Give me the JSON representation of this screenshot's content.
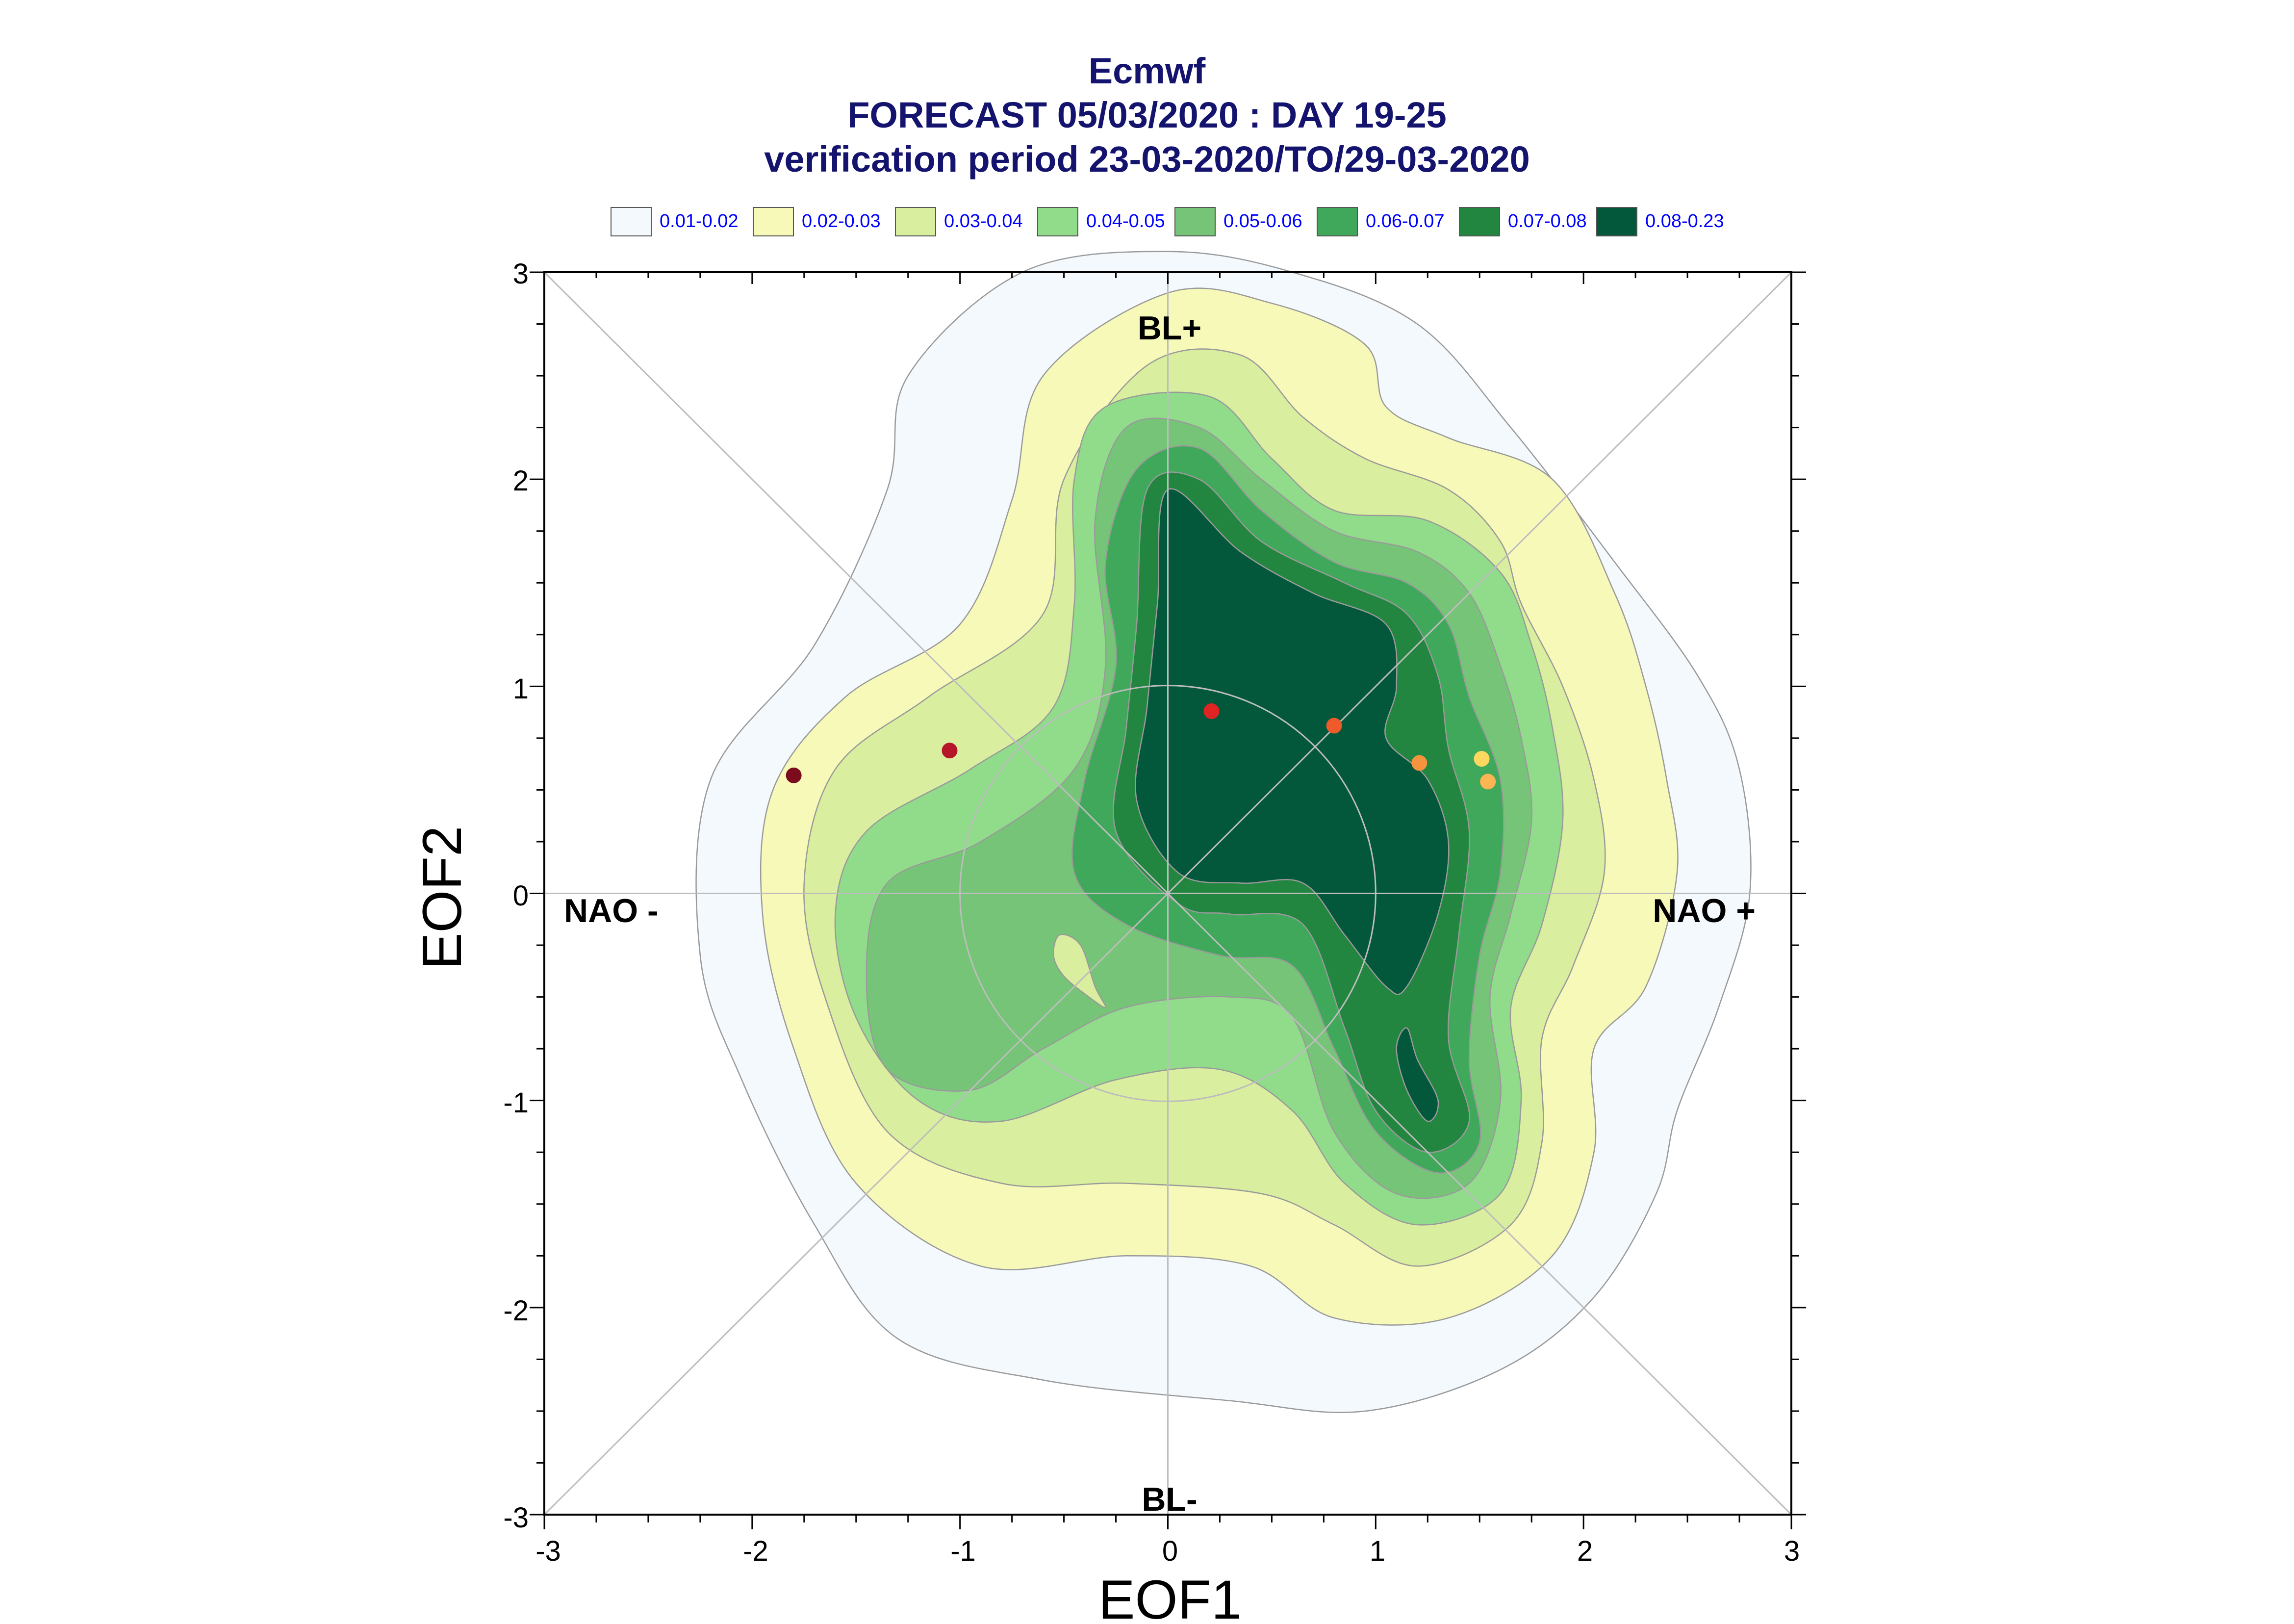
{
  "chart_data": {
    "type": "contour-density-scatter",
    "title_lines": [
      "Ecmwf",
      "FORECAST 05/03/2020 : DAY 19-25",
      "verification period 23-03-2020/TO/29-03-2020"
    ],
    "xlabel": "EOF1",
    "ylabel": "EOF2",
    "xlim": [
      -3,
      3
    ],
    "ylim": [
      -3,
      3
    ],
    "x_ticks": [
      "-3",
      "-2",
      "-1",
      "0",
      "1",
      "2",
      "3"
    ],
    "y_ticks": [
      "3",
      "2",
      "1",
      "0",
      "-1",
      "-2",
      "-3"
    ],
    "grid": true,
    "reference_circle_radius": 1,
    "region_labels": {
      "bl_plus": "BL+",
      "bl_minus": "BL-",
      "nao_minus": "NAO -",
      "nao_plus": "NAO +"
    },
    "legend": [
      {
        "label": "0.01-0.02",
        "color": "#f4f9fd"
      },
      {
        "label": "0.02-0.03",
        "color": "#f7f9b9"
      },
      {
        "label": "0.03-0.04",
        "color": "#d9ee9e"
      },
      {
        "label": "0.04-0.05",
        "color": "#90dc8b"
      },
      {
        "label": "0.05-0.06",
        "color": "#76c477"
      },
      {
        "label": "0.06-0.07",
        "color": "#40a85a"
      },
      {
        "label": "0.07-0.08",
        "color": "#238640"
      },
      {
        "label": "0.08-0.23",
        "color": "#03573a"
      }
    ],
    "points": [
      {
        "x": -1.8,
        "y": 0.57,
        "color": "#7a0c1e"
      },
      {
        "x": -1.05,
        "y": 0.69,
        "color": "#b5162a"
      },
      {
        "x": 0.21,
        "y": 0.88,
        "color": "#e02424"
      },
      {
        "x": 0.8,
        "y": 0.81,
        "color": "#ee5a2a"
      },
      {
        "x": 1.21,
        "y": 0.63,
        "color": "#f6933e"
      },
      {
        "x": 1.51,
        "y": 0.65,
        "color": "#fcd860"
      },
      {
        "x": 1.54,
        "y": 0.54,
        "color": "#fbb553"
      }
    ],
    "contours": [
      {
        "level": "0.01-0.02",
        "color": "#f4f9fd",
        "loops": [
          [
            [
              -0.7,
              3.0
            ],
            [
              0.0,
              3.1
            ],
            [
              0.6,
              3.0
            ],
            [
              1.2,
              2.75
            ],
            [
              1.65,
              2.25
            ],
            [
              2.15,
              1.6
            ],
            [
              2.55,
              1.05
            ],
            [
              2.75,
              0.6
            ],
            [
              2.8,
              0.0
            ],
            [
              2.65,
              -0.55
            ],
            [
              2.45,
              -1.05
            ],
            [
              2.35,
              -1.45
            ],
            [
              2.05,
              -1.95
            ],
            [
              1.6,
              -2.3
            ],
            [
              0.95,
              -2.5
            ],
            [
              0.3,
              -2.45
            ],
            [
              -0.6,
              -2.35
            ],
            [
              -1.3,
              -2.15
            ],
            [
              -1.7,
              -1.6
            ],
            [
              -2.05,
              -0.9
            ],
            [
              -2.25,
              -0.3
            ],
            [
              -2.2,
              0.55
            ],
            [
              -1.7,
              1.2
            ],
            [
              -1.35,
              1.95
            ],
            [
              -1.25,
              2.5
            ]
          ]
        ]
      },
      {
        "level": "0.02-0.03",
        "color": "#f7f9b9",
        "loops": [
          [
            [
              0.0,
              2.9
            ],
            [
              0.5,
              2.85
            ],
            [
              0.95,
              2.65
            ],
            [
              1.05,
              2.35
            ],
            [
              1.35,
              2.2
            ],
            [
              1.85,
              2.0
            ],
            [
              2.15,
              1.45
            ],
            [
              2.3,
              1.0
            ],
            [
              2.4,
              0.55
            ],
            [
              2.45,
              0.1
            ],
            [
              2.3,
              -0.45
            ],
            [
              2.05,
              -0.75
            ],
            [
              2.05,
              -1.25
            ],
            [
              1.85,
              -1.75
            ],
            [
              1.35,
              -2.05
            ],
            [
              0.8,
              -2.05
            ],
            [
              0.4,
              -1.8
            ],
            [
              -0.2,
              -1.75
            ],
            [
              -0.9,
              -1.8
            ],
            [
              -1.5,
              -1.4
            ],
            [
              -1.8,
              -0.75
            ],
            [
              -1.95,
              -0.1
            ],
            [
              -1.9,
              0.5
            ],
            [
              -1.55,
              0.95
            ],
            [
              -1.0,
              1.3
            ],
            [
              -0.75,
              1.9
            ],
            [
              -0.6,
              2.5
            ]
          ]
        ]
      },
      {
        "level": "0.03-0.04",
        "color": "#d9ee9e",
        "loops": [
          [
            [
              -0.1,
              2.55
            ],
            [
              0.35,
              2.6
            ],
            [
              0.65,
              2.3
            ],
            [
              0.95,
              2.1
            ],
            [
              1.35,
              1.95
            ],
            [
              1.6,
              1.7
            ],
            [
              1.7,
              1.4
            ],
            [
              1.9,
              1.0
            ],
            [
              2.05,
              0.55
            ],
            [
              2.1,
              0.1
            ],
            [
              1.95,
              -0.35
            ],
            [
              1.8,
              -0.7
            ],
            [
              1.8,
              -1.2
            ],
            [
              1.65,
              -1.6
            ],
            [
              1.2,
              -1.8
            ],
            [
              0.8,
              -1.6
            ],
            [
              0.45,
              -1.45
            ],
            [
              -0.2,
              -1.4
            ],
            [
              -0.8,
              -1.4
            ],
            [
              -1.35,
              -1.15
            ],
            [
              -1.65,
              -0.5
            ],
            [
              -1.75,
              0.05
            ],
            [
              -1.6,
              0.6
            ],
            [
              -1.15,
              0.95
            ],
            [
              -0.6,
              1.35
            ],
            [
              -0.5,
              2.0
            ]
          ]
        ]
      },
      {
        "level": "0.04-0.05",
        "color": "#90dc8b",
        "loops": [
          [
            [
              -0.3,
              2.35
            ],
            [
              0.2,
              2.4
            ],
            [
              0.5,
              2.1
            ],
            [
              0.8,
              1.85
            ],
            [
              1.25,
              1.8
            ],
            [
              1.6,
              1.55
            ],
            [
              1.75,
              1.2
            ],
            [
              1.85,
              0.8
            ],
            [
              1.9,
              0.35
            ],
            [
              1.8,
              -0.15
            ],
            [
              1.65,
              -0.55
            ],
            [
              1.7,
              -1.0
            ],
            [
              1.6,
              -1.45
            ],
            [
              1.2,
              -1.6
            ],
            [
              0.85,
              -1.4
            ],
            [
              0.6,
              -1.05
            ],
            [
              0.25,
              -0.85
            ],
            [
              -0.25,
              -0.9
            ],
            [
              -0.8,
              -1.1
            ],
            [
              -1.2,
              -1.0
            ],
            [
              -1.5,
              -0.6
            ],
            [
              -1.6,
              -0.1
            ],
            [
              -1.45,
              0.3
            ],
            [
              -0.95,
              0.6
            ],
            [
              -0.55,
              0.9
            ],
            [
              -0.45,
              1.4
            ],
            [
              -0.45,
              2.0
            ]
          ]
        ]
      },
      {
        "level": "0.05-0.06",
        "color": "#76c477",
        "loops": [
          [
            [
              -0.2,
              2.25
            ],
            [
              0.15,
              2.25
            ],
            [
              0.45,
              2.0
            ],
            [
              0.8,
              1.75
            ],
            [
              1.2,
              1.65
            ],
            [
              1.45,
              1.45
            ],
            [
              1.6,
              1.1
            ],
            [
              1.7,
              0.75
            ],
            [
              1.75,
              0.35
            ],
            [
              1.65,
              -0.1
            ],
            [
              1.55,
              -0.5
            ],
            [
              1.6,
              -1.0
            ],
            [
              1.45,
              -1.4
            ],
            [
              1.1,
              -1.45
            ],
            [
              0.8,
              -1.15
            ],
            [
              0.6,
              -0.6
            ],
            [
              0.3,
              -0.5
            ],
            [
              -0.2,
              -0.55
            ],
            [
              -0.6,
              -0.75
            ],
            [
              -0.95,
              -0.95
            ],
            [
              -1.35,
              -0.85
            ],
            [
              -1.45,
              -0.4
            ],
            [
              -1.35,
              0.05
            ],
            [
              -0.9,
              0.25
            ],
            [
              -0.45,
              0.6
            ],
            [
              -0.3,
              1.1
            ],
            [
              -0.35,
              1.8
            ]
          ]
        ]
      },
      {
        "level": "0.06-0.07",
        "color": "#40a85a",
        "loops": [
          [
            [
              -0.15,
              2.05
            ],
            [
              0.15,
              2.15
            ],
            [
              0.45,
              1.85
            ],
            [
              0.8,
              1.6
            ],
            [
              1.15,
              1.5
            ],
            [
              1.35,
              1.3
            ],
            [
              1.45,
              0.95
            ],
            [
              1.6,
              0.55
            ],
            [
              1.6,
              0.1
            ],
            [
              1.5,
              -0.3
            ],
            [
              1.45,
              -0.8
            ],
            [
              1.5,
              -1.2
            ],
            [
              1.3,
              -1.35
            ],
            [
              1.0,
              -1.15
            ],
            [
              0.8,
              -0.75
            ],
            [
              0.6,
              -0.35
            ],
            [
              0.25,
              -0.3
            ],
            [
              -0.2,
              -0.15
            ],
            [
              -0.45,
              0.1
            ],
            [
              -0.4,
              0.55
            ],
            [
              -0.25,
              1.1
            ],
            [
              -0.3,
              1.6
            ]
          ]
        ]
      },
      {
        "level": "0.07-0.08",
        "color": "#238640",
        "loops": [
          [
            [
              -0.1,
              1.95
            ],
            [
              0.15,
              2.0
            ],
            [
              0.45,
              1.7
            ],
            [
              0.85,
              1.5
            ],
            [
              1.15,
              1.35
            ],
            [
              1.3,
              1.05
            ],
            [
              1.35,
              0.7
            ],
            [
              1.45,
              0.3
            ],
            [
              1.4,
              -0.2
            ],
            [
              1.35,
              -0.7
            ],
            [
              1.45,
              -1.1
            ],
            [
              1.25,
              -1.25
            ],
            [
              1.0,
              -1.05
            ],
            [
              0.85,
              -0.65
            ],
            [
              0.65,
              -0.15
            ],
            [
              0.3,
              -0.1
            ],
            [
              0.05,
              -0.05
            ],
            [
              -0.25,
              0.3
            ],
            [
              -0.2,
              0.8
            ],
            [
              -0.15,
              1.3
            ]
          ]
        ]
      },
      {
        "level": "0.08-0.23",
        "color": "#03573a",
        "loops": [
          [
            [
              0.0,
              1.95
            ],
            [
              0.35,
              1.65
            ],
            [
              0.7,
              1.45
            ],
            [
              1.05,
              1.3
            ],
            [
              1.1,
              1.0
            ],
            [
              1.05,
              0.75
            ],
            [
              1.25,
              0.55
            ],
            [
              1.35,
              0.25
            ],
            [
              1.3,
              -0.1
            ],
            [
              1.15,
              -0.45
            ],
            [
              1.05,
              -0.45
            ],
            [
              0.85,
              -0.2
            ],
            [
              0.65,
              0.05
            ],
            [
              0.35,
              0.05
            ],
            [
              0.05,
              0.1
            ],
            [
              -0.15,
              0.45
            ],
            [
              -0.1,
              0.9
            ],
            [
              -0.05,
              1.4
            ]
          ],
          [
            [
              1.15,
              -0.65
            ],
            [
              1.2,
              -0.8
            ],
            [
              1.3,
              -1.0
            ],
            [
              1.25,
              -1.1
            ],
            [
              1.15,
              -0.95
            ],
            [
              1.1,
              -0.75
            ]
          ]
        ]
      },
      {
        "level": "inner-hole",
        "color": "#d9ee9e",
        "loops": [
          [
            [
              -0.52,
              -0.2
            ],
            [
              -0.42,
              -0.25
            ],
            [
              -0.35,
              -0.45
            ],
            [
              -0.3,
              -0.55
            ],
            [
              -0.38,
              -0.5
            ],
            [
              -0.5,
              -0.4
            ],
            [
              -0.55,
              -0.3
            ]
          ]
        ]
      }
    ]
  }
}
